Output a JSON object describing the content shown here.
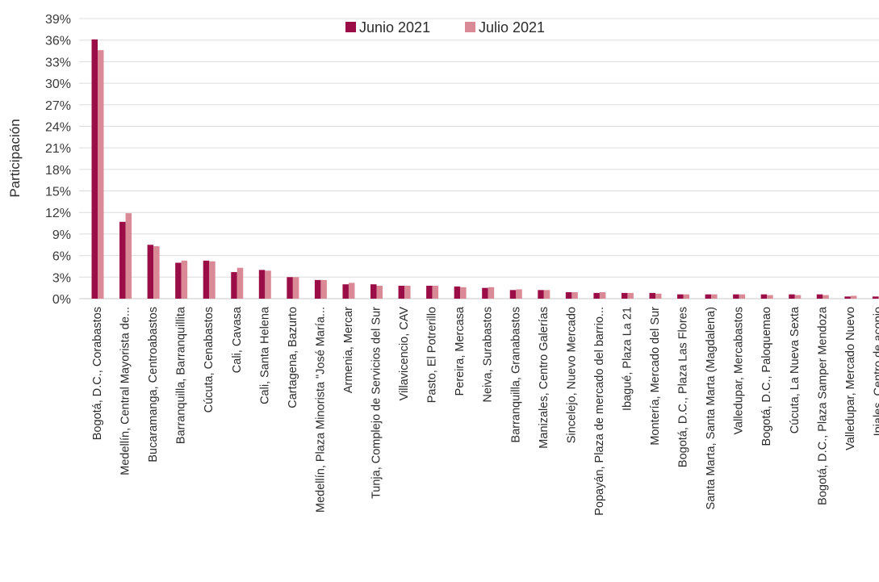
{
  "chart_data": {
    "type": "bar",
    "title": "",
    "xlabel": "",
    "ylabel": "Participación",
    "ylim": [
      0,
      39
    ],
    "y_ticks": [
      "0%",
      "3%",
      "6%",
      "9%",
      "12%",
      "15%",
      "18%",
      "21%",
      "24%",
      "27%",
      "30%",
      "33%",
      "36%",
      "39%"
    ],
    "y_tick_values": [
      0,
      3,
      6,
      9,
      12,
      15,
      18,
      21,
      24,
      27,
      30,
      33,
      36,
      39
    ],
    "grid": true,
    "legend_position": "top",
    "categories": [
      "Bogotá, D.C., Corabastos",
      "Medellín, Central Mayorista de...",
      "Bucaramanga, Centroabastos",
      "Barranquilla, Barranquillita",
      "Cúcuta, Cenabastos",
      "Cali, Cavasa",
      "Cali, Santa Helena",
      "Cartagena, Bazurto",
      "Medellín, Plaza Minorista \"José María...",
      "Armenia, Mercar",
      "Tunja, Complejo de Servicios del Sur",
      "Villavicencio, CAV",
      "Pasto, El Potrerillo",
      "Pereira, Mercasa",
      "Neiva, Surabastos",
      "Barranquilla, Granabastos",
      "Manizales, Centro Galerías",
      "Sincelejo, Nuevo Mercado",
      "Popayán, Plaza de mercado del barrio...",
      "Ibagué, Plaza La 21",
      "Montería, Mercado del Sur",
      "Bogotá, D.C., Plaza Las Flores",
      "Santa Marta, Santa Marta (Magdalena)",
      "Valledupar, Mercabastos",
      "Bogotá, D.C., Paloquemao",
      "Cúcuta, La Nueva Sexta",
      "Bogotá, D.C., Plaza Samper Mendoza",
      "Valledupar, Mercado Nuevo",
      "Ipiales, Centro de acopio"
    ],
    "series": [
      {
        "name": "Junio 2021",
        "color": "#9b0d46",
        "values": [
          36.1,
          10.7,
          7.5,
          5.0,
          5.3,
          3.7,
          4.0,
          3.0,
          2.6,
          2.0,
          2.0,
          1.8,
          1.8,
          1.7,
          1.5,
          1.2,
          1.2,
          0.9,
          0.8,
          0.8,
          0.8,
          0.6,
          0.6,
          0.6,
          0.6,
          0.6,
          0.6,
          0.3,
          0.3
        ]
      },
      {
        "name": "Julio 2021",
        "color": "#d98a96",
        "values": [
          34.6,
          11.9,
          7.3,
          5.3,
          5.2,
          4.3,
          3.9,
          3.0,
          2.6,
          2.2,
          1.8,
          1.8,
          1.8,
          1.6,
          1.6,
          1.3,
          1.2,
          0.9,
          0.9,
          0.8,
          0.7,
          0.6,
          0.6,
          0.6,
          0.5,
          0.5,
          0.5,
          0.4,
          0.3
        ]
      }
    ]
  }
}
